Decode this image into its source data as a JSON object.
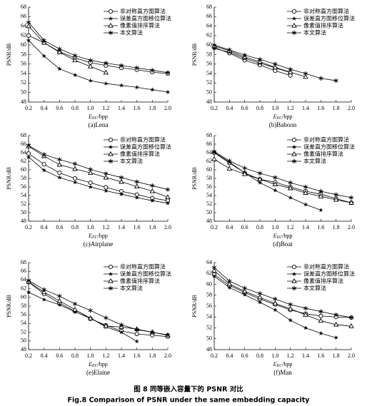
{
  "figure_caption_cn": "图 8 同等嵌入容量下的 PSNR 对比",
  "figure_caption_en": "Fig.8 Comparison of PSNR under the same embedding capacity",
  "chart_data": [
    {
      "type": "line",
      "title": "(a)Lena",
      "y_label": "PSNR/dB",
      "x_label": [
        "E",
        "EC",
        "/bpp"
      ],
      "legend": "upper right",
      "xlim": [
        0.2,
        2.0
      ],
      "ylim": [
        48,
        68
      ],
      "xticks": [
        0.2,
        0.4,
        0.6,
        0.8,
        {
          "value": 1,
          "label": "1.0"
        },
        1.2,
        1.4,
        1.6,
        1.8,
        {
          "value": 2,
          "label": "2.0"
        }
      ],
      "yticks": [
        48,
        50,
        52,
        54,
        56,
        58,
        60,
        62,
        64,
        66,
        68
      ],
      "series": [
        {
          "name": "非对称直方图算法",
          "marker": "circle",
          "color": "#000000",
          "x": [
            0.2,
            0.4,
            0.6,
            0.8,
            1.0,
            1.2,
            1.4,
            1.6,
            1.8,
            2.0
          ],
          "values": [
            62,
            60.5,
            58.6,
            57.3,
            56.3,
            55.7,
            55.2,
            54.8,
            54.3,
            54.0
          ]
        },
        {
          "name": "误差直方图移位算法",
          "marker": "star",
          "color": "#000000",
          "x": [
            0.2,
            0.4,
            0.6,
            0.8,
            1.0,
            1.2,
            1.4,
            1.6,
            1.8,
            2.0
          ],
          "values": [
            61,
            57.7,
            55,
            53.7,
            52.5,
            51.9,
            51.5,
            51.1,
            50.6,
            50.1
          ]
        },
        {
          "name": "像素值排序算法",
          "marker": "triangle",
          "color": "#000000",
          "x": [
            0.2,
            0.4,
            0.6,
            0.8,
            1.0,
            1.2
          ],
          "values": [
            64,
            60.5,
            58.5,
            56.8,
            55.5,
            54.2
          ]
        },
        {
          "name": "本文算法",
          "marker": "asterisk",
          "color": "#000000",
          "x": [
            0.2,
            0.4,
            0.6,
            0.8,
            1.0,
            1.2,
            1.4,
            1.6,
            1.8,
            2.0
          ],
          "values": [
            64.8,
            61,
            59.2,
            57.8,
            56.8,
            56.2,
            55.7,
            55.2,
            54.7,
            54.2
          ]
        }
      ]
    },
    {
      "type": "line",
      "title": "(b)Baboon",
      "y_label": "PSNR/dB",
      "x_label": [
        "E",
        "EC",
        "/bpp"
      ],
      "legend": "upper right",
      "xlim": [
        0.2,
        2.0
      ],
      "ylim": [
        48,
        68
      ],
      "xticks": [
        0.2,
        0.4,
        0.6,
        0.8,
        {
          "value": 1,
          "label": "1.0"
        },
        1.2,
        1.4,
        1.6,
        1.8,
        {
          "value": 2,
          "label": "2.0"
        }
      ],
      "yticks": [
        48,
        50,
        52,
        54,
        56,
        58,
        60,
        62,
        64,
        66,
        68
      ],
      "series": [
        {
          "name": "非对称直方图算法",
          "marker": "circle",
          "color": "#000000",
          "x": [
            0.2,
            0.4,
            0.6,
            0.8,
            1.0,
            1.2
          ],
          "values": [
            59.5,
            58.3,
            56.8,
            55.8,
            54.6,
            53.6
          ]
        },
        {
          "name": "误差直方图移位算法",
          "marker": "star",
          "color": "#000000",
          "x": [
            0.2,
            0.4,
            0.6,
            0.8,
            1.0,
            1.2
          ],
          "values": [
            59.3,
            58.5,
            57.2,
            56.2,
            55.2,
            54.2
          ]
        },
        {
          "name": "像素值排序算法",
          "marker": "triangle",
          "color": "#000000",
          "x": [
            0.2,
            0.4,
            0.6,
            0.8,
            1.0,
            1.2,
            1.4
          ],
          "values": [
            59.8,
            58.8,
            57.5,
            56.5,
            55.3,
            54.3,
            53.3
          ]
        },
        {
          "name": "本文算法",
          "marker": "asterisk",
          "color": "#000000",
          "x": [
            0.2,
            0.4,
            0.6,
            0.8,
            1.0,
            1.2,
            1.4,
            1.6,
            1.8
          ],
          "values": [
            60,
            59,
            57.9,
            57,
            56,
            54.9,
            54,
            53,
            52.5
          ]
        }
      ]
    },
    {
      "type": "line",
      "title": "(c)Airplane",
      "y_label": "PSNR/dB",
      "x_label": [
        "E",
        "EC",
        "/bpp"
      ],
      "legend": "upper right",
      "xlim": [
        0.2,
        2.0
      ],
      "ylim": [
        48,
        68
      ],
      "xticks": [
        0.2,
        0.4,
        0.6,
        0.8,
        {
          "value": 1,
          "label": "1.0"
        },
        1.2,
        1.4,
        1.6,
        1.8,
        {
          "value": 2,
          "label": "2.0"
        }
      ],
      "yticks": [
        48,
        50,
        52,
        54,
        56,
        58,
        60,
        62,
        64,
        66,
        68
      ],
      "series": [
        {
          "name": "非对称直方图算法",
          "marker": "circle",
          "color": "#000000",
          "x": [
            0.2,
            0.4,
            0.6,
            0.8,
            1.0,
            1.2,
            1.4,
            1.6,
            1.8,
            2.0
          ],
          "values": [
            63.8,
            61.3,
            59.3,
            58,
            57,
            55.9,
            55,
            54.2,
            53.4,
            52.8
          ]
        },
        {
          "name": "误差直方图移位算法",
          "marker": "star",
          "color": "#000000",
          "x": [
            0.2,
            0.4,
            0.6,
            0.8,
            1.0,
            1.2,
            1.4,
            1.6,
            1.8,
            2.0
          ],
          "values": [
            63,
            59.9,
            58.2,
            57.1,
            56,
            55.1,
            54.3,
            53.5,
            52.8,
            52.2
          ]
        },
        {
          "name": "像素值排序算法",
          "marker": "triangle",
          "color": "#000000",
          "x": [
            0.2,
            0.4,
            0.6,
            0.8,
            1.0,
            1.2,
            1.4,
            1.6,
            1.8,
            2.0
          ],
          "values": [
            65.5,
            63.2,
            61.2,
            60.2,
            59.3,
            58.2,
            57.2,
            56.1,
            55,
            53.6
          ]
        },
        {
          "name": "本文算法",
          "marker": "asterisk",
          "color": "#000000",
          "x": [
            0.2,
            0.4,
            0.6,
            0.8,
            1.0,
            1.2,
            1.4,
            1.6,
            1.8,
            2.0
          ],
          "values": [
            65.7,
            63.6,
            62.4,
            61.4,
            60.1,
            59.1,
            58.2,
            57.2,
            56.3,
            55.4
          ]
        }
      ]
    },
    {
      "type": "line",
      "title": "(d)Boat",
      "y_label": "PSNR/dB",
      "x_label": [
        "E",
        "EC",
        "/bpp"
      ],
      "legend": "upper right",
      "xlim": [
        0.2,
        2.0
      ],
      "ylim": [
        48,
        68
      ],
      "xticks": [
        0.2,
        0.4,
        0.6,
        0.8,
        {
          "value": 1,
          "label": "1.0"
        },
        1.2,
        1.4,
        1.6,
        1.8,
        {
          "value": 2,
          "label": "2.0"
        }
      ],
      "yticks": [
        48,
        50,
        52,
        54,
        56,
        58,
        60,
        62,
        64,
        66,
        68
      ],
      "series": [
        {
          "name": "非对称直方图算法",
          "marker": "circle",
          "color": "#000000",
          "x": [
            0.2,
            0.4,
            0.6,
            0.8,
            1.0,
            1.2,
            1.4,
            1.6,
            1.8,
            2.0
          ],
          "values": [
            64,
            61.6,
            59.3,
            57.8,
            57.1,
            56,
            55,
            54.3,
            53.3,
            52.3
          ]
        },
        {
          "name": "误差直方图移位算法",
          "marker": "star",
          "color": "#000000",
          "x": [
            0.2,
            0.4,
            0.6,
            0.8,
            1.0,
            1.2,
            1.4,
            1.6
          ],
          "values": [
            64.1,
            61.8,
            59.3,
            57,
            55.2,
            53.5,
            51.9,
            50.6
          ]
        },
        {
          "name": "像素值排序算法",
          "marker": "triangle",
          "color": "#000000",
          "x": [
            0.2,
            0.4,
            0.6,
            0.8,
            1.0,
            1.2,
            1.4,
            1.6,
            1.8,
            2.0
          ],
          "values": [
            62.5,
            60.3,
            59,
            57.8,
            56.6,
            55.7,
            54.6,
            53.8,
            53,
            52.3
          ]
        },
        {
          "name": "本文算法",
          "marker": "asterisk",
          "color": "#000000",
          "x": [
            0.2,
            0.4,
            0.6,
            0.8,
            1.0,
            1.2,
            1.4,
            1.6,
            1.8,
            2.0
          ],
          "values": [
            64.3,
            62.1,
            60.4,
            59.2,
            58.2,
            57,
            56,
            55,
            54.2,
            53.5
          ]
        }
      ]
    },
    {
      "type": "line",
      "title": "(e)Elaine",
      "y_label": "PSNR/dB",
      "x_label": [
        "E",
        "EC",
        "/bpp"
      ],
      "legend": "upper right",
      "xlim": [
        0.2,
        2.0
      ],
      "ylim": [
        48,
        68
      ],
      "xticks": [
        0.2,
        0.4,
        0.6,
        0.8,
        {
          "value": 1,
          "label": "1.0"
        },
        1.2,
        1.4,
        1.6,
        1.8,
        {
          "value": 2,
          "label": "2.0"
        }
      ],
      "yticks": [
        48,
        50,
        52,
        54,
        56,
        58,
        60,
        62,
        64,
        66,
        68
      ],
      "series": [
        {
          "name": "非对称直方图算法",
          "marker": "circle",
          "color": "#000000",
          "x": [
            0.2,
            0.4,
            0.6,
            0.8,
            1.0,
            1.2,
            1.4,
            1.6,
            1.8,
            2.0
          ],
          "values": [
            63.5,
            60.8,
            58.7,
            56.8,
            55.1,
            53.6,
            52.3,
            51.6,
            51.3,
            51.0
          ]
        },
        {
          "name": "误差直方图移位算法",
          "marker": "star",
          "color": "#000000",
          "x": [
            0.2,
            0.4,
            0.6,
            0.8,
            1.0,
            1.2,
            1.4,
            1.6
          ],
          "values": [
            61.2,
            59.5,
            58.3,
            56.7,
            55.3,
            53.2,
            52.0,
            49.9
          ]
        },
        {
          "name": "像素值排序算法",
          "marker": "triangle",
          "color": "#000000",
          "x": [
            0.2,
            0.4,
            0.6,
            0.8,
            1.0,
            1.2,
            1.4,
            1.6,
            1.8,
            2.0
          ],
          "values": [
            63.6,
            61.2,
            59.2,
            57.2,
            55.2,
            53.4,
            53.2,
            52.7,
            52.0,
            51.3
          ]
        },
        {
          "name": "本文算法",
          "marker": "asterisk",
          "color": "#000000",
          "x": [
            0.2,
            0.4,
            0.6,
            0.8,
            1.0,
            1.2,
            1.4,
            1.6,
            1.8,
            2.0
          ],
          "values": [
            63.9,
            61.8,
            60.3,
            58.5,
            57,
            55.3,
            53.7,
            52.6,
            52.0,
            51.4
          ]
        }
      ]
    },
    {
      "type": "line",
      "title": "(f)Man",
      "y_label": "PSNR/dB",
      "x_label": [
        "E",
        "EC",
        "/bpp"
      ],
      "legend": "upper right",
      "xlim": [
        0.2,
        2.0
      ],
      "ylim": [
        48,
        64
      ],
      "xticks": [
        0.2,
        0.4,
        0.6,
        0.8,
        {
          "value": 1,
          "label": "1.0"
        },
        1.2,
        1.4,
        1.6,
        1.8,
        {
          "value": 2,
          "label": "2.0"
        }
      ],
      "yticks": [
        48,
        50,
        52,
        54,
        56,
        58,
        60,
        62,
        64
      ],
      "series": [
        {
          "name": "非对称直方图算法",
          "marker": "circle",
          "color": "#000000",
          "x": [
            0.2,
            0.4,
            0.6,
            0.8,
            1.0,
            1.2,
            1.4,
            1.6,
            1.8,
            2.0
          ],
          "values": [
            61.8,
            59.8,
            58.5,
            57.3,
            56.3,
            55.3,
            54.6,
            54.2,
            54.0,
            53.9
          ]
        },
        {
          "name": "误差直方图移位算法",
          "marker": "star",
          "color": "#000000",
          "x": [
            0.2,
            0.4,
            0.6,
            0.8,
            1.0,
            1.2,
            1.4,
            1.6,
            1.8
          ],
          "values": [
            61.5,
            59.4,
            58.1,
            56.7,
            55.3,
            53.4,
            52,
            51,
            50.2
          ]
        },
        {
          "name": "像素值排序算法",
          "marker": "triangle",
          "color": "#000000",
          "x": [
            0.2,
            0.4,
            0.6,
            0.8,
            1.0,
            1.2,
            1.4,
            1.6,
            1.8,
            2.0
          ],
          "values": [
            62.5,
            60.1,
            58.7,
            57.6,
            56.5,
            55.5,
            54.4,
            53.3,
            52.6,
            52.3
          ]
        },
        {
          "name": "本文算法",
          "marker": "asterisk",
          "color": "#000000",
          "x": [
            0.2,
            0.4,
            0.6,
            0.8,
            1.0,
            1.2,
            1.4,
            1.6,
            1.8,
            2.0
          ],
          "values": [
            63.1,
            60.6,
            59.3,
            58.3,
            57.3,
            56.3,
            55.6,
            55,
            54.4,
            53.9
          ]
        }
      ]
    }
  ]
}
